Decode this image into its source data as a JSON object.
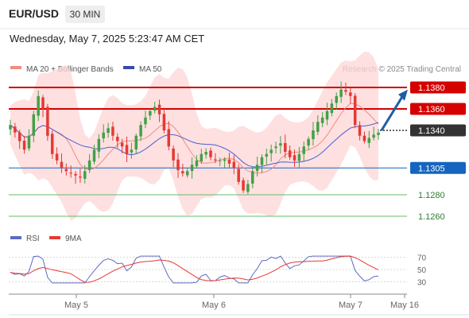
{
  "header": {
    "symbol": "EUR/USD",
    "timeframe": "30 MIN",
    "datetime": "Wednesday, May 7, 2025 5:23:47 AM CET"
  },
  "legend": {
    "bollinger": "MA 20 + Bollinger Bands",
    "ma50": "MA 50",
    "credit": "Research © 2025 Trading Central"
  },
  "rsi_legend": {
    "rsi": "RSI",
    "ma9": "9MA"
  },
  "colors": {
    "bullish": "#43a047",
    "bearish": "#e53935",
    "resistance": "#d50000",
    "support": "#1565c0",
    "support_green": "#66bb6a",
    "current": "#333333",
    "arrow": "#1e5da6",
    "bands": "#fdd5d5",
    "ma20": "#f28b82",
    "ma50": "#4a5fd0",
    "rsi_line": "#5c6bc0",
    "rsi_ma": "#e53935"
  },
  "chart_data": {
    "type": "candlestick",
    "x_ticks": [
      "May 5",
      "May 6",
      "May 7",
      "May 16"
    ],
    "y_range": [
      1.1255,
      1.1386
    ],
    "levels": [
      {
        "label": "1.1380",
        "value": 1.138,
        "kind": "resistance"
      },
      {
        "label": "1.1360",
        "value": 1.136,
        "kind": "resistance"
      },
      {
        "label": "1.1340",
        "value": 1.134,
        "kind": "current"
      },
      {
        "label": "1.1305",
        "value": 1.1305,
        "kind": "support"
      },
      {
        "label": "1.1280",
        "value": 1.128,
        "kind": "support-green"
      },
      {
        "label": "1.1260",
        "value": 1.126,
        "kind": "support-green"
      }
    ],
    "forecast": {
      "from": 1.134,
      "to": 1.1378
    },
    "price_path": [
      1.1345,
      1.1338,
      1.133,
      1.1322,
      1.1335,
      1.1355,
      1.1372,
      1.136,
      1.1335,
      1.1318,
      1.1312,
      1.1305,
      1.1302,
      1.13,
      1.1298,
      1.1296,
      1.1302,
      1.1312,
      1.1322,
      1.1332,
      1.1338,
      1.1342,
      1.1335,
      1.133,
      1.1325,
      1.1318,
      1.1322,
      1.1335,
      1.1345,
      1.1352,
      1.1358,
      1.1362,
      1.1355,
      1.134,
      1.1325,
      1.1312,
      1.1303,
      1.13,
      1.1302,
      1.1308,
      1.1312,
      1.1318,
      1.132,
      1.1315,
      1.1312,
      1.1312,
      1.1313,
      1.1309,
      1.1305,
      1.1292,
      1.1284,
      1.129,
      1.1302,
      1.1308,
      1.1315,
      1.1318,
      1.1322,
      1.1325,
      1.1328,
      1.132,
      1.1315,
      1.1312,
      1.1318,
      1.1325,
      1.1332,
      1.134,
      1.1348,
      1.1352,
      1.1358,
      1.1365,
      1.1372,
      1.1378,
      1.1376,
      1.1372,
      1.1345,
      1.1335,
      1.133,
      1.1333,
      1.1336,
      1.1338
    ],
    "rsi": {
      "ticks": [
        70,
        50,
        30
      ],
      "range": [
        20,
        80
      ]
    }
  }
}
